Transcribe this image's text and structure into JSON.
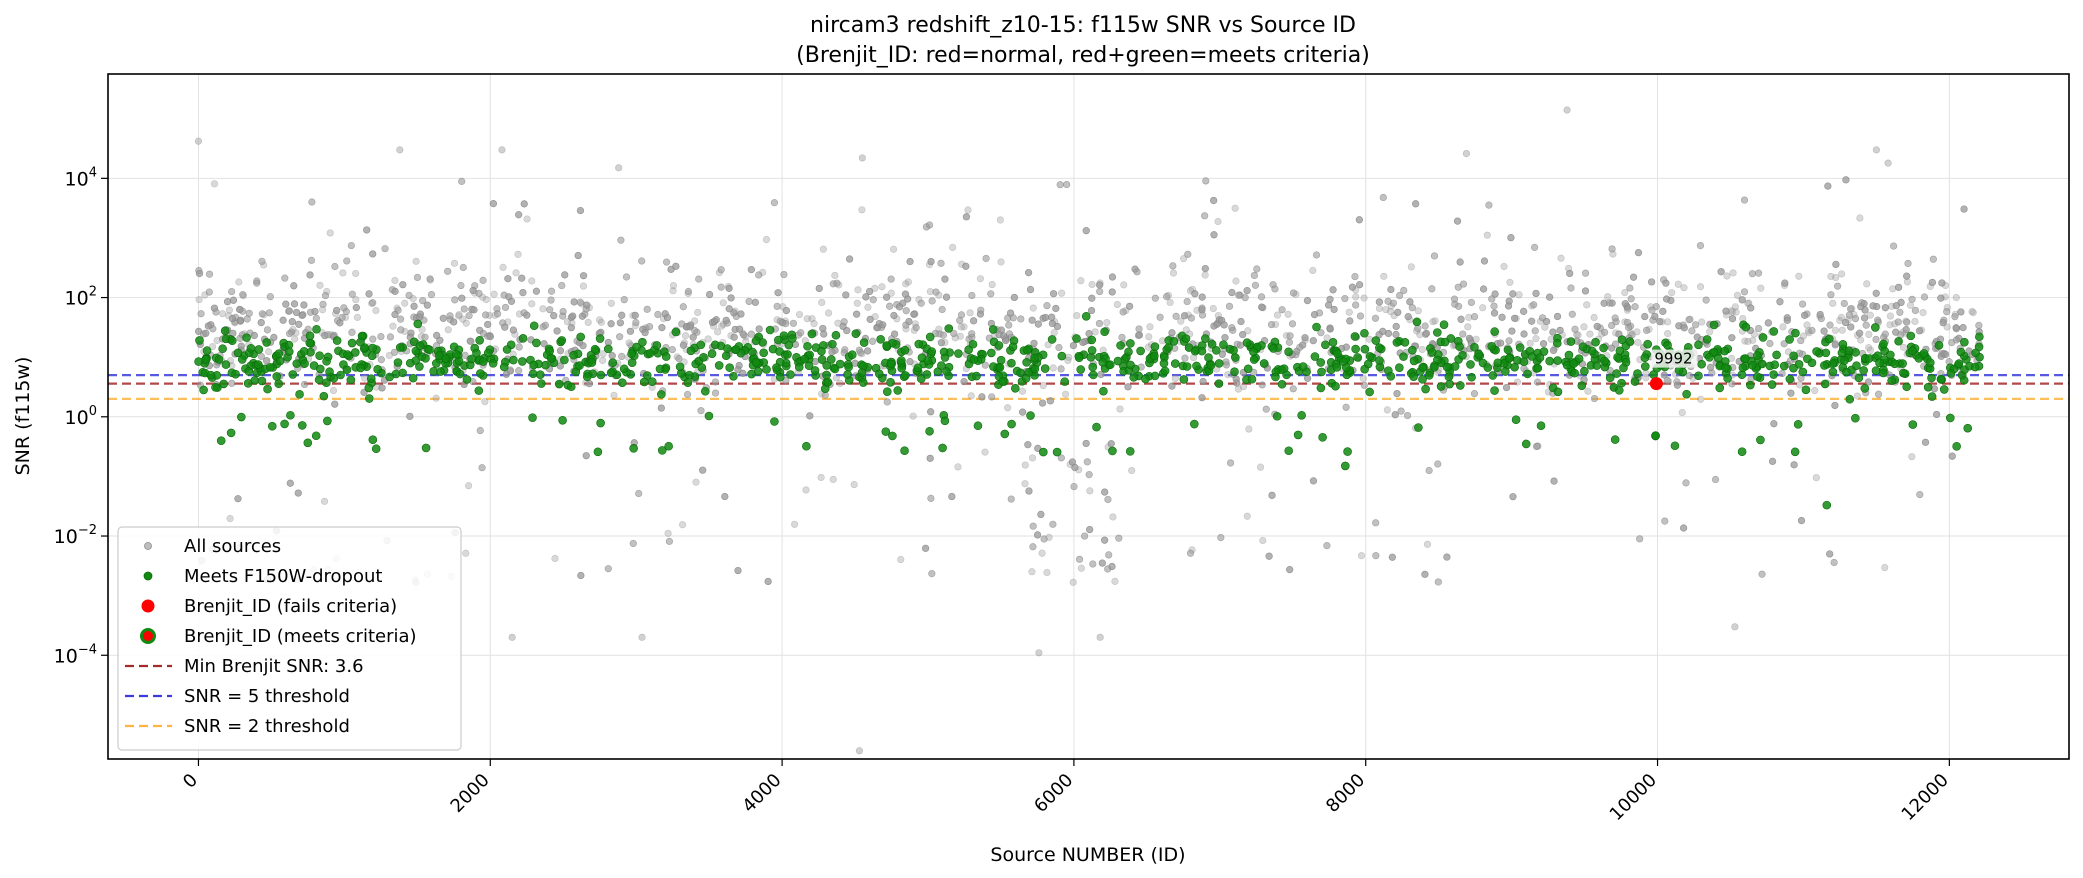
{
  "chart_data": {
    "type": "scatter",
    "title_line1": "nircam3 redshift_z10-15: f115w SNR vs Source ID",
    "title_line2": "(Brenjit_ID: red=normal, red+green=meets criteria)",
    "xlabel": "Source NUMBER (ID)",
    "ylabel": "SNR (f115w)",
    "xlim": [
      -620,
      12820
    ],
    "ylim_log10": [
      -5.74,
      5.75
    ],
    "y_scale": "log",
    "grid": true,
    "legend_position": "lower-left",
    "x_ticks": [
      {
        "value": 0,
        "label": "0"
      },
      {
        "value": 2000,
        "label": "2000"
      },
      {
        "value": 4000,
        "label": "4000"
      },
      {
        "value": 6000,
        "label": "6000"
      },
      {
        "value": 8000,
        "label": "8000"
      },
      {
        "value": 10000,
        "label": "10000"
      },
      {
        "value": 12000,
        "label": "12000"
      }
    ],
    "y_ticks": [
      {
        "exp": 4,
        "base": "10",
        "sup": "4"
      },
      {
        "exp": 2,
        "base": "10",
        "sup": "2"
      },
      {
        "exp": 0,
        "base": "10",
        "sup": "0"
      },
      {
        "exp": -2,
        "base": "10",
        "sup": "−2"
      },
      {
        "exp": -4,
        "base": "10",
        "sup": "−4"
      }
    ],
    "hlines": [
      {
        "name": "Min Brenjit SNR: 3.6",
        "y": 3.6,
        "color": "#a52a2a"
      },
      {
        "name": "SNR = 5 threshold",
        "y": 5,
        "color": "#3b3bdc"
      },
      {
        "name": "SNR = 2 threshold",
        "y": 2,
        "color": "#ffb340"
      }
    ],
    "series": [
      {
        "name": "All sources",
        "color": "#9a9a9a",
        "x_range": [
          0,
          12210
        ],
        "count": 12211,
        "typical_snr_range": [
          0.3,
          300
        ],
        "sample_outliers": [
          {
            "x": 0,
            "y": 42000
          },
          {
            "x": 1380,
            "y": 30000
          },
          {
            "x": 2080,
            "y": 30000
          },
          {
            "x": 2880,
            "y": 15000
          },
          {
            "x": 4550,
            "y": 22000
          },
          {
            "x": 8690,
            "y": 26000
          },
          {
            "x": 9380,
            "y": 140000
          },
          {
            "x": 11500,
            "y": 30000
          },
          {
            "x": 11580,
            "y": 18000
          },
          {
            "x": 4530,
            "y": 2.5e-06
          },
          {
            "x": 5760,
            "y": 0.00011
          },
          {
            "x": 6180,
            "y": 0.0002
          },
          {
            "x": 2150,
            "y": 0.0002
          },
          {
            "x": 3040,
            "y": 0.0002
          },
          {
            "x": 10530,
            "y": 0.0003
          }
        ]
      },
      {
        "name": "Meets F150W-dropout",
        "color": "#108a10",
        "x_range": [
          0,
          12210
        ],
        "typical_snr_range": [
          1,
          60
        ],
        "sample_outliers": [
          {
            "x": 11160,
            "y": 0.033
          },
          {
            "x": 12050,
            "y": 0.32
          },
          {
            "x": 9100,
            "y": 0.35
          },
          {
            "x": 5100,
            "y": 0.3
          },
          {
            "x": 7860,
            "y": 0.15
          },
          {
            "x": 1560,
            "y": 0.3
          }
        ]
      },
      {
        "name": "Brenjit_ID (fails criteria)",
        "color": "#ff0000",
        "points": [
          {
            "x": 9992,
            "y": 3.6
          }
        ]
      },
      {
        "name": "Brenjit_ID (meets criteria)",
        "color": "#ff0000",
        "edge_color": "#108a10",
        "points": []
      }
    ],
    "annotations": [
      {
        "text": "9992",
        "x": 9992,
        "y": 3.6
      }
    ]
  }
}
